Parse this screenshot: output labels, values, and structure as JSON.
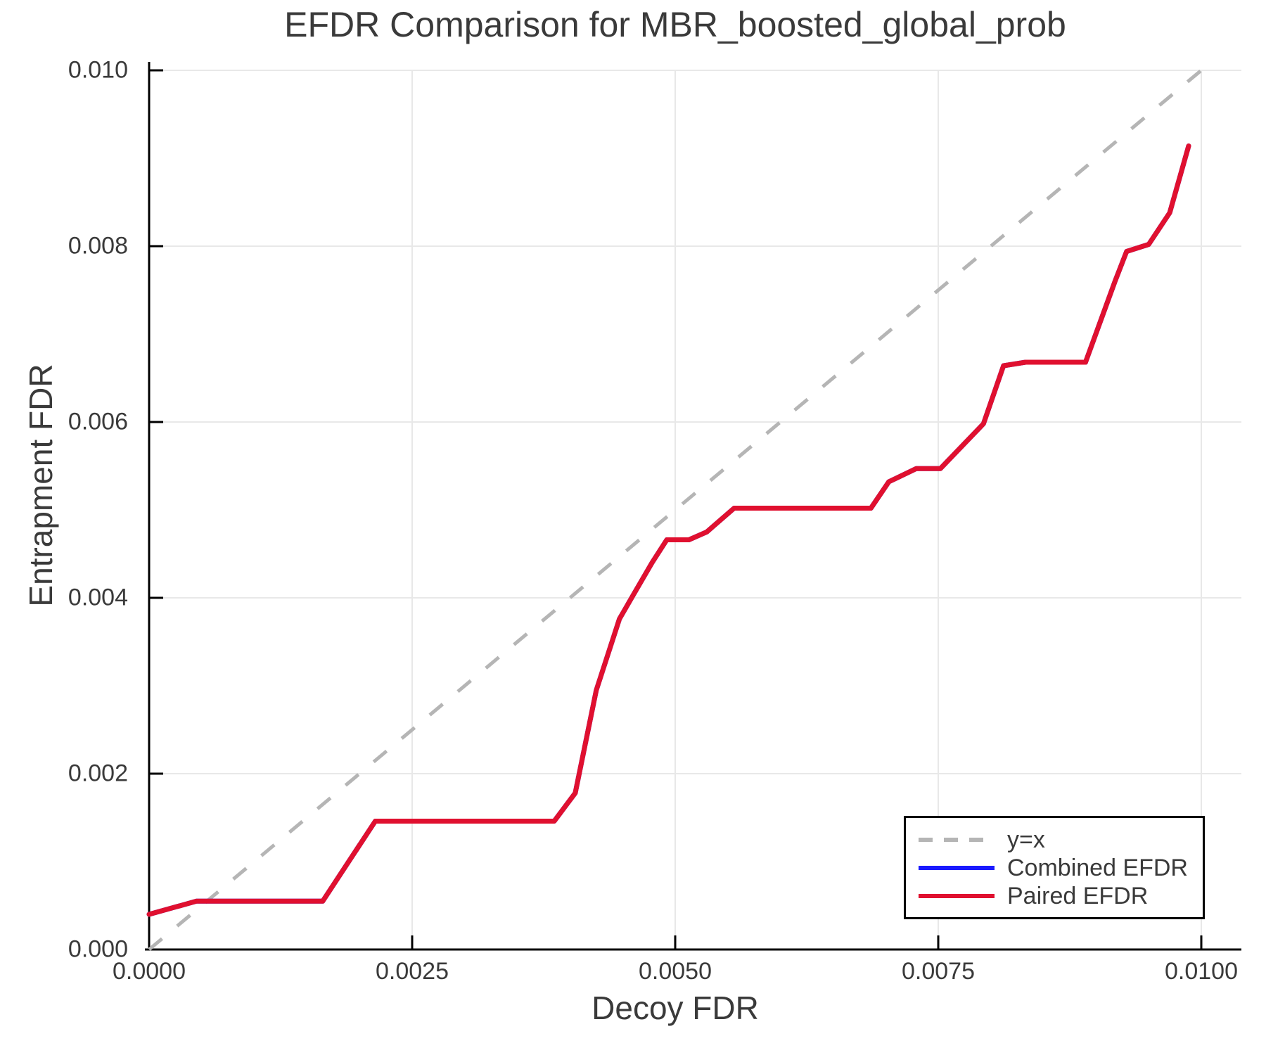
{
  "figure": {
    "background": "#ffffff"
  },
  "chart_data": {
    "type": "line",
    "title": "EFDR Comparison for MBR_boosted_global_prob",
    "xlabel": "Decoy FDR",
    "ylabel": "Entrapment FDR",
    "xlim": [
      0.0,
      0.01
    ],
    "ylim": [
      0.0,
      0.01
    ],
    "grid": true,
    "x_ticks": [
      0.0,
      0.0025,
      0.005,
      0.0075,
      0.01
    ],
    "x_tick_labels": [
      "0.0000",
      "0.0025",
      "0.0050",
      "0.0075",
      "0.0100"
    ],
    "y_ticks": [
      0.0,
      0.002,
      0.004,
      0.006,
      0.008,
      0.01
    ],
    "y_tick_labels": [
      "0.000",
      "0.002",
      "0.004",
      "0.006",
      "0.008",
      "0.010"
    ],
    "colors": {
      "grid": "#e8e8e8",
      "axis": "#000000",
      "text": "#3a3a3a"
    },
    "reference_line": {
      "name": "y=x",
      "from": [
        0.0,
        0.0
      ],
      "to": [
        0.01,
        0.01
      ],
      "color": "#b5b5b5",
      "style": "dashed"
    },
    "legend": {
      "position": "lower-right",
      "items": [
        {
          "label": "y=x",
          "color": "#b5b5b5",
          "style": "dashed"
        },
        {
          "label": "Combined EFDR",
          "color": "#1a1aff",
          "style": "solid"
        },
        {
          "label": "Paired EFDR",
          "color": "#e0102f",
          "style": "solid"
        }
      ]
    },
    "series": [
      {
        "name": "Combined EFDR",
        "color": "#1a1aff",
        "note": "coincides exactly with Paired EFDR and is hidden beneath it",
        "points": [
          [
            0.0,
            0.0004
          ],
          [
            0.00045,
            0.00055
          ],
          [
            0.00165,
            0.00055
          ],
          [
            0.00215,
            0.00146
          ],
          [
            0.00385,
            0.00146
          ],
          [
            0.00405,
            0.00178
          ],
          [
            0.00425,
            0.00295
          ],
          [
            0.00447,
            0.00376
          ],
          [
            0.0046,
            0.00403
          ],
          [
            0.00478,
            0.0044
          ],
          [
            0.00492,
            0.00466
          ],
          [
            0.00513,
            0.00466
          ],
          [
            0.0053,
            0.00475
          ],
          [
            0.00556,
            0.00502
          ],
          [
            0.00686,
            0.00502
          ],
          [
            0.00703,
            0.00532
          ],
          [
            0.00729,
            0.00547
          ],
          [
            0.00752,
            0.00547
          ],
          [
            0.00793,
            0.00598
          ],
          [
            0.00812,
            0.00664
          ],
          [
            0.00833,
            0.00668
          ],
          [
            0.0089,
            0.00668
          ],
          [
            0.00918,
            0.0076
          ],
          [
            0.00929,
            0.00794
          ],
          [
            0.0095,
            0.00802
          ],
          [
            0.0097,
            0.00838
          ],
          [
            0.00988,
            0.00914
          ]
        ]
      },
      {
        "name": "Paired EFDR",
        "color": "#e0102f",
        "points": [
          [
            0.0,
            0.0004
          ],
          [
            0.00045,
            0.00055
          ],
          [
            0.00165,
            0.00055
          ],
          [
            0.00215,
            0.00146
          ],
          [
            0.00385,
            0.00146
          ],
          [
            0.00405,
            0.00178
          ],
          [
            0.00425,
            0.00295
          ],
          [
            0.00447,
            0.00376
          ],
          [
            0.0046,
            0.00403
          ],
          [
            0.00478,
            0.0044
          ],
          [
            0.00492,
            0.00466
          ],
          [
            0.00513,
            0.00466
          ],
          [
            0.0053,
            0.00475
          ],
          [
            0.00556,
            0.00502
          ],
          [
            0.00686,
            0.00502
          ],
          [
            0.00703,
            0.00532
          ],
          [
            0.00729,
            0.00547
          ],
          [
            0.00752,
            0.00547
          ],
          [
            0.00793,
            0.00598
          ],
          [
            0.00812,
            0.00664
          ],
          [
            0.00833,
            0.00668
          ],
          [
            0.0089,
            0.00668
          ],
          [
            0.00918,
            0.0076
          ],
          [
            0.00929,
            0.00794
          ],
          [
            0.0095,
            0.00802
          ],
          [
            0.0097,
            0.00838
          ],
          [
            0.00988,
            0.00914
          ]
        ]
      }
    ]
  }
}
